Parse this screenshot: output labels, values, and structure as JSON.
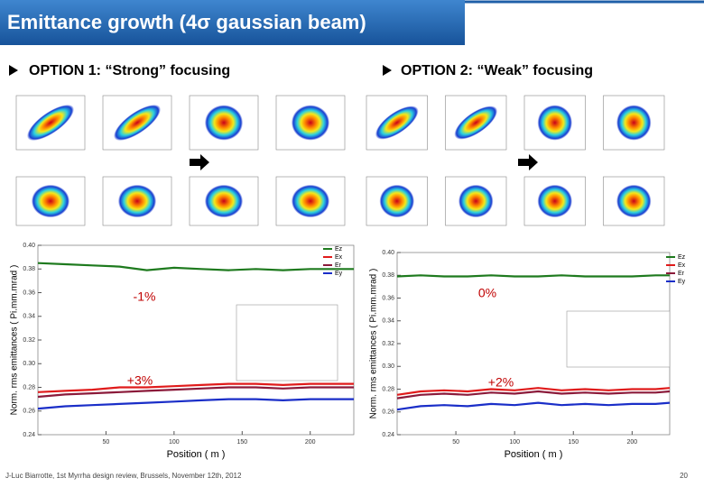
{
  "header": {
    "title": "Emittance growth (4σ gaussian beam)"
  },
  "options": [
    {
      "label": "OPTION 1: “Strong” focusing"
    },
    {
      "label": "OPTION 2: “Weak” focusing"
    }
  ],
  "chart_data": [
    {
      "type": "line",
      "ylabel": "Norm. rms emittances ( Pi.mm.mrad )",
      "xlabel": "Position ( m )",
      "annotations": [
        "-1%",
        "+3%"
      ],
      "legend": "upper right",
      "grid": false,
      "xlim": [
        0,
        232
      ],
      "xticks": [
        50,
        100,
        150,
        200
      ],
      "ylim": [
        0.24,
        0.4
      ],
      "yticks": [
        0.24,
        0.26,
        0.28,
        {
          "value": 0.3,
          "label": "0.30"
        },
        0.32,
        0.34,
        0.36,
        0.38,
        {
          "value": 0.4,
          "label": "0.40"
        }
      ],
      "x": [
        0,
        20,
        40,
        60,
        80,
        100,
        120,
        140,
        160,
        180,
        200,
        220,
        232
      ],
      "series": [
        {
          "name": "Ez",
          "color": "#1e7a1e",
          "values": [
            0.385,
            0.384,
            0.383,
            0.382,
            0.379,
            0.381,
            0.38,
            0.379,
            0.38,
            0.379,
            0.38,
            0.38,
            0.38
          ]
        },
        {
          "name": "Ex",
          "color": "#e01b1b",
          "values": [
            0.276,
            0.277,
            0.278,
            0.28,
            0.28,
            0.281,
            0.282,
            0.283,
            0.283,
            0.282,
            0.283,
            0.283,
            0.283
          ]
        },
        {
          "name": "Er",
          "color": "#8b1a3a",
          "values": [
            0.272,
            0.274,
            0.275,
            0.276,
            0.277,
            0.278,
            0.279,
            0.28,
            0.28,
            0.279,
            0.28,
            0.28,
            0.28
          ]
        },
        {
          "name": "Ey",
          "color": "#1a2ec8",
          "values": [
            0.262,
            0.264,
            0.265,
            0.266,
            0.267,
            0.268,
            0.269,
            0.27,
            0.27,
            0.269,
            0.27,
            0.27,
            0.27
          ]
        }
      ]
    },
    {
      "type": "line",
      "ylabel": "Norm. rms emittances ( Pi.mm.mrad )",
      "xlabel": "Position ( m )",
      "annotations": [
        "0%",
        "+2%"
      ],
      "legend": "upper right",
      "grid": false,
      "xlim": [
        0,
        232
      ],
      "xticks": [
        50,
        100,
        150,
        200
      ],
      "ylim": [
        0.24,
        0.4
      ],
      "yticks": [
        0.24,
        0.26,
        0.28,
        {
          "value": 0.3,
          "label": "0.30"
        },
        0.32,
        0.34,
        0.36,
        0.38,
        {
          "value": 0.4,
          "label": "0.40"
        }
      ],
      "x": [
        0,
        20,
        40,
        60,
        80,
        100,
        120,
        140,
        160,
        180,
        200,
        220,
        232
      ],
      "series": [
        {
          "name": "Ez",
          "color": "#1e7a1e",
          "values": [
            0.379,
            0.38,
            0.379,
            0.379,
            0.38,
            0.379,
            0.379,
            0.38,
            0.379,
            0.379,
            0.379,
            0.38,
            0.38
          ]
        },
        {
          "name": "Ex",
          "color": "#e01b1b",
          "values": [
            0.275,
            0.278,
            0.279,
            0.278,
            0.28,
            0.279,
            0.281,
            0.279,
            0.28,
            0.279,
            0.28,
            0.28,
            0.281
          ]
        },
        {
          "name": "Er",
          "color": "#8b1a3a",
          "values": [
            0.272,
            0.275,
            0.276,
            0.275,
            0.277,
            0.276,
            0.278,
            0.276,
            0.277,
            0.276,
            0.277,
            0.277,
            0.278
          ]
        },
        {
          "name": "Ey",
          "color": "#1a2ec8",
          "values": [
            0.262,
            0.265,
            0.266,
            0.265,
            0.267,
            0.266,
            0.268,
            0.266,
            0.267,
            0.266,
            0.267,
            0.267,
            0.268
          ]
        }
      ]
    }
  ],
  "footer": {
    "credit": "J-Luc Biarrotte, 1st Myrrha design review, Brussels, November 12th, 2012",
    "page": "20"
  }
}
